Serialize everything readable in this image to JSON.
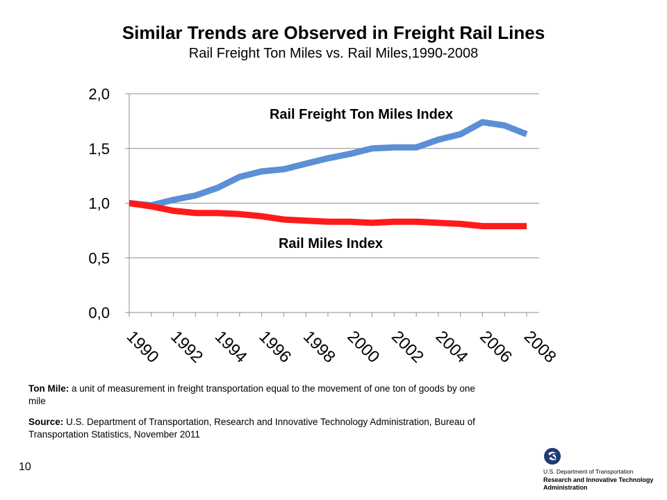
{
  "page": {
    "title": "Similar Trends are Observed in Freight Rail Lines",
    "subtitle": "Rail Freight Ton Miles vs. Rail Miles,1990-2008",
    "notes": {
      "ton_mile_label": "Ton Mile:",
      "ton_mile_text": " a unit of measurement in freight transportation equal to the movement of one ton of goods by one mile",
      "source_label": "Source:",
      "source_text": " U.S. Department of Transportation, Research and Innovative Technology Administration, Bureau of Transportation Statistics, November 2011"
    },
    "page_number": "10",
    "logo": {
      "line1": "U.S. Department of Transportation",
      "line2": "Research and Innovative Technology Administration"
    }
  },
  "chart_data": {
    "type": "line",
    "title": "Similar Trends are Observed in Freight Rail Lines",
    "subtitle": "Rail Freight Ton Miles vs. Rail Miles,1990-2008",
    "x": [
      1990,
      1991,
      1992,
      1993,
      1994,
      1995,
      1996,
      1997,
      1998,
      1999,
      2000,
      2001,
      2002,
      2003,
      2004,
      2005,
      2006,
      2007,
      2008
    ],
    "x_tick_labels": [
      "1990",
      "1992",
      "1994",
      "1996",
      "1998",
      "2000",
      "2002",
      "2004",
      "2006",
      "2008"
    ],
    "y_tick_labels": [
      "0,0",
      "0,5",
      "1,0",
      "1,5",
      "2,0"
    ],
    "y_ticks": [
      0,
      0.5,
      1.0,
      1.5,
      2.0
    ],
    "ylim": [
      0,
      2.0
    ],
    "grid": "horizontal",
    "series": [
      {
        "name": "Rail Freight Ton Miles Index",
        "color": "#5b8fd6",
        "values": [
          1.0,
          0.98,
          1.03,
          1.07,
          1.14,
          1.24,
          1.29,
          1.31,
          1.36,
          1.41,
          1.45,
          1.5,
          1.51,
          1.51,
          1.58,
          1.63,
          1.74,
          1.71,
          1.63
        ]
      },
      {
        "name": "Rail Miles Index",
        "color": "#ff1a1a",
        "values": [
          1.0,
          0.97,
          0.93,
          0.91,
          0.91,
          0.9,
          0.88,
          0.85,
          0.84,
          0.83,
          0.83,
          0.82,
          0.83,
          0.83,
          0.82,
          0.81,
          0.79,
          0.79,
          0.79
        ]
      }
    ]
  }
}
